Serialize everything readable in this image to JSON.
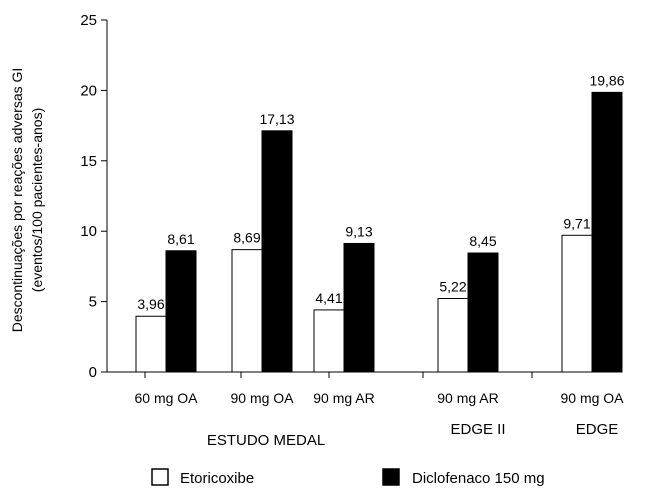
{
  "chart_data": {
    "type": "bar",
    "ylabel_line1": "Descontinuações por reações adversas GI",
    "ylabel_line2": "(eventos/100 pacientes-anos)",
    "ylim": [
      0,
      25
    ],
    "yticks": [
      0,
      5,
      10,
      15,
      20,
      25
    ],
    "grid": false,
    "legend_position": "bottom",
    "categories": [
      "60 mg OA",
      "90 mg OA",
      "90 mg AR",
      "90 mg AR",
      "90 mg OA"
    ],
    "groups": [
      {
        "label": "ESTUDO MEDAL",
        "categories": [
          0,
          1,
          2
        ]
      },
      {
        "label": "EDGE II",
        "categories": [
          3
        ]
      },
      {
        "label": "EDGE",
        "categories": [
          4
        ]
      }
    ],
    "series": [
      {
        "name": "Etoricoxibe",
        "color": "#ffffff",
        "values": [
          3.96,
          8.69,
          4.41,
          5.22,
          9.71
        ],
        "labels": [
          "3,96",
          "8,69",
          "4,41",
          "5,22",
          "9,71"
        ]
      },
      {
        "name": "Diclofenaco 150 mg",
        "color": "#000000",
        "values": [
          8.61,
          17.13,
          9.13,
          8.45,
          19.86
        ],
        "labels": [
          "8,61",
          "17,13",
          "9,13",
          "8,45",
          "19,86"
        ]
      }
    ]
  }
}
